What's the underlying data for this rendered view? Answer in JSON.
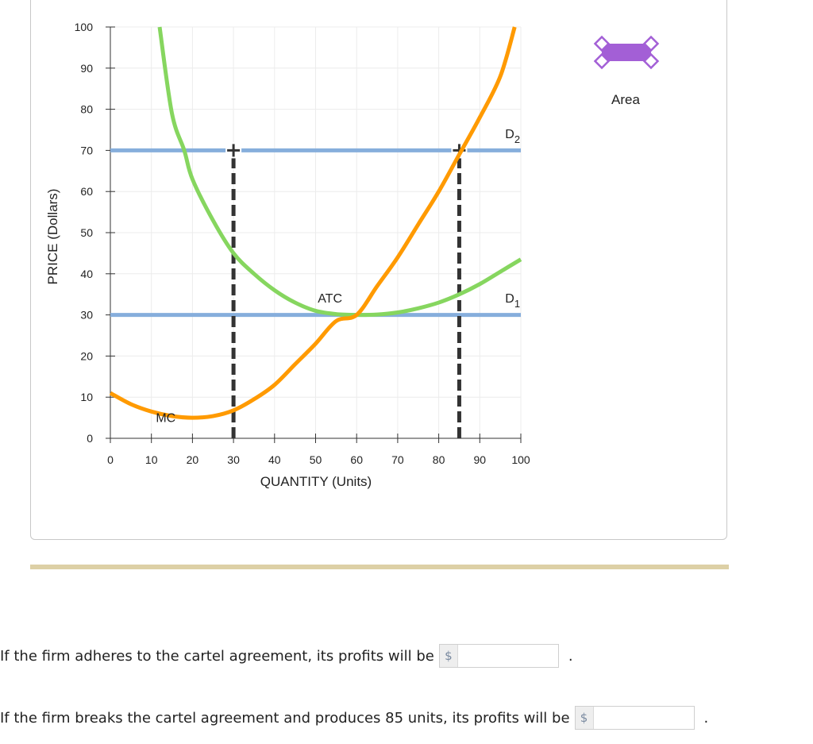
{
  "chart_data": {
    "type": "line",
    "xlabel": "QUANTITY (Units)",
    "ylabel": "PRICE (Dollars)",
    "xlim": [
      0,
      100
    ],
    "ylim": [
      0,
      100
    ],
    "xticks": [
      0,
      10,
      20,
      30,
      40,
      50,
      60,
      70,
      80,
      90,
      100
    ],
    "yticks": [
      0,
      10,
      20,
      30,
      40,
      50,
      60,
      70,
      80,
      90,
      100
    ],
    "grid": true,
    "series": [
      {
        "name": "MC",
        "color": "#ff9a00",
        "x": [
          0,
          5,
          10,
          15,
          20,
          25,
          30,
          35,
          40,
          45,
          50,
          55,
          60,
          65,
          70,
          75,
          80,
          85,
          90,
          95,
          98.5
        ],
        "y": [
          11,
          8.3,
          6.5,
          5.4,
          5,
          5.4,
          6.8,
          9.5,
          13,
          18,
          23,
          28.5,
          30,
          37,
          44,
          52,
          60,
          69,
          78,
          88,
          100
        ]
      },
      {
        "name": "ATC",
        "color": "#86d65f",
        "x": [
          12,
          15,
          18,
          20,
          25,
          30,
          35,
          40,
          45,
          50,
          55,
          60,
          65,
          70,
          75,
          80,
          85,
          90,
          95,
          100
        ],
        "y": [
          100,
          79,
          70,
          63,
          53,
          45,
          40,
          36,
          33,
          31,
          30.2,
          30,
          30.1,
          30.6,
          31.6,
          33,
          35,
          37.5,
          40.5,
          43.5
        ]
      },
      {
        "name": "D1",
        "color": "#86aedc",
        "x": [
          0,
          100
        ],
        "y": [
          30,
          30
        ]
      },
      {
        "name": "D2",
        "color": "#86aedc",
        "x": [
          0,
          100
        ],
        "y": [
          70,
          70
        ]
      },
      {
        "name": "",
        "style": "dashed-vertical",
        "color": "#333333",
        "x": [
          30,
          30
        ],
        "y": [
          0,
          70
        ]
      },
      {
        "name": "",
        "style": "dashed-vertical",
        "color": "#333333",
        "x": [
          85,
          85
        ],
        "y": [
          0,
          70
        ]
      }
    ],
    "annotations": [
      {
        "text": "MC",
        "x": 13.5,
        "y": 4
      },
      {
        "text": "ATC",
        "x": 53.5,
        "y": 33
      },
      {
        "text": "D",
        "sub": "1",
        "x": 98,
        "y": 33
      },
      {
        "text": "D",
        "sub": "2",
        "x": 98,
        "y": 73
      }
    ]
  },
  "legend": {
    "tool_label": "Area",
    "color": "#a35fd6"
  },
  "questions": [
    {
      "text": "If the firm adheres to the cartel agreement, its profits will be",
      "currency": "$",
      "value": "",
      "end": "."
    },
    {
      "text": "If the firm breaks the cartel agreement and produces 85 units, its profits will be",
      "currency": "$",
      "value": "",
      "end": "."
    }
  ]
}
